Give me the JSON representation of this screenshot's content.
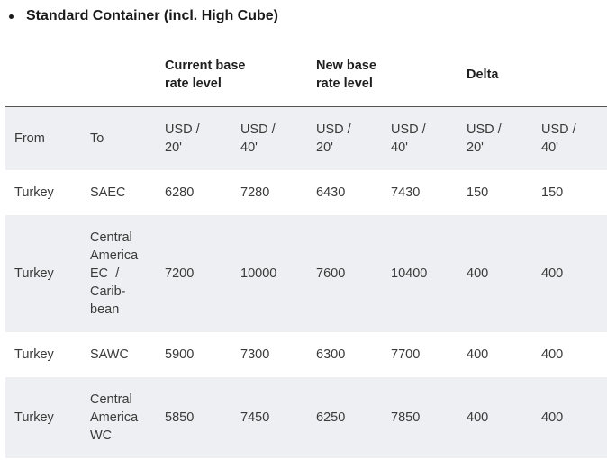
{
  "title": "Standard Container (incl. High Cube)",
  "header_groups": {
    "current": [
      "Current base",
      "rate level"
    ],
    "new": [
      "New base",
      "rate level"
    ],
    "delta": "Delta"
  },
  "units_row": {
    "from": "From",
    "to": "To",
    "c20": [
      "USD /",
      "20'"
    ],
    "c40": [
      "USD /",
      "40'"
    ]
  },
  "rows": [
    {
      "from": "Turkey",
      "to": [
        "SAEC"
      ],
      "cur20": "6280",
      "cur40": "7280",
      "new20": "6430",
      "new40": "7430",
      "d20": "150",
      "d40": "150"
    },
    {
      "from": "Turkey",
      "to": [
        "Central",
        "America",
        "EC  /",
        "Carib-",
        "bean"
      ],
      "cur20": "7200",
      "cur40": "10000",
      "new20": "7600",
      "new40": "10400",
      "d20": "400",
      "d40": "400"
    },
    {
      "from": "Turkey",
      "to": [
        "SAWC"
      ],
      "cur20": "5900",
      "cur40": "7300",
      "new20": "6300",
      "new40": "7700",
      "d20": "400",
      "d40": "400"
    },
    {
      "from": "Turkey",
      "to": [
        "Central",
        "America",
        "WC"
      ],
      "cur20": "5850",
      "cur40": "7450",
      "new20": "6250",
      "new40": "7850",
      "d20": "400",
      "d40": "400"
    }
  ]
}
